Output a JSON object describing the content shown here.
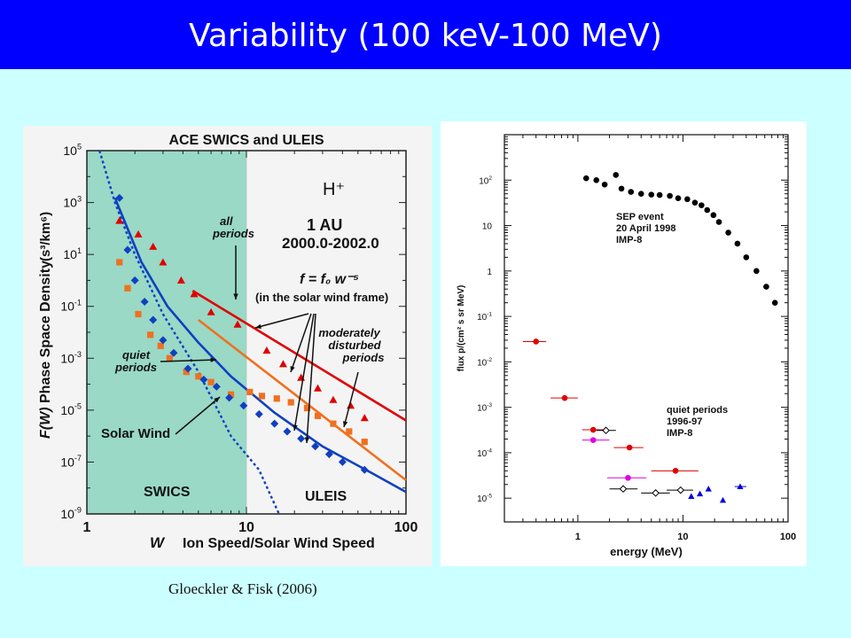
{
  "slide": {
    "title": "Variability (100 keV-100 MeV)",
    "citation": "Gloeckler & Fisk (2006)",
    "colors": {
      "title_bar": "#0000ff",
      "background": "#ccffff"
    }
  },
  "chart_data": [
    {
      "type": "scatter",
      "title": "ACE SWICS and ULEIS",
      "xlabel_symbol": "W",
      "xlabel": "Ion Speed/Solar Wind Speed",
      "ylabel_symbol": "F(W)",
      "ylabel": "Phase Space Density",
      "ylabel_units": "(s³/km⁶)",
      "xscale": "log",
      "yscale": "log",
      "xlim": [
        1,
        100
      ],
      "ylim": [
        1e-09,
        100000.0
      ],
      "x_ticks": [
        {
          "v": 1,
          "label": "1"
        },
        {
          "v": 10,
          "label": "10"
        },
        {
          "v": 100,
          "label": "100"
        }
      ],
      "y_ticks": [
        {
          "v": 100000.0,
          "b": "10",
          "e": "5"
        },
        {
          "v": 1000.0,
          "b": "10",
          "e": "3"
        },
        {
          "v": 10.0,
          "b": "10",
          "e": "1"
        },
        {
          "v": 0.1,
          "b": "10",
          "e": "-1"
        },
        {
          "v": 0.001,
          "b": "10",
          "e": "-3"
        },
        {
          "v": 1e-05,
          "b": "10",
          "e": "-5"
        },
        {
          "v": 1e-07,
          "b": "10",
          "e": "-7"
        },
        {
          "v": 1e-09,
          "b": "10",
          "e": "-9"
        }
      ],
      "swics_region": {
        "x_range": [
          1,
          10
        ],
        "label": "SWICS",
        "color": "#99d9c6"
      },
      "region_labels": {
        "swics": "SWICS",
        "uleis": "ULEIS"
      },
      "species": "H⁺",
      "location": "1 AU",
      "period": "2000.0-2002.0",
      "formula": {
        "text": "f = f₀ w⁻⁵",
        "note": "(in the solar wind frame)"
      },
      "annotations": {
        "all_periods": [
          "all",
          "periods"
        ],
        "moderately_disturbed": [
          "moderately",
          "disturbed",
          "periods"
        ],
        "quiet_periods": [
          "quiet",
          "periods"
        ],
        "solar_wind": "Solar Wind"
      },
      "series": [
        {
          "name": "all periods",
          "color": "#e00000",
          "marker": "triangle",
          "x": [
            1.6,
            2.1,
            2.6,
            3.0,
            3.9,
            4.7,
            6.0,
            8.8,
            13.4,
            17,
            22,
            28,
            35,
            45,
            55
          ],
          "y": [
            200,
            60,
            20,
            5,
            1,
            0.3,
            0.06,
            0.02,
            0.002,
            0.0006,
            0.00018,
            7e-05,
            2.5e-05,
            1.5e-05,
            5e-06
          ],
          "fit_line": {
            "x": [
              4.6,
              100
            ],
            "y": [
              0.4,
              4e-06
            ]
          }
        },
        {
          "name": "moderately disturbed periods",
          "color": "#f07020",
          "marker": "square",
          "x": [
            1.6,
            1.8,
            2.1,
            2.5,
            2.9,
            3.3,
            4.2,
            5.0,
            6.0,
            8.0,
            10.5,
            12.5,
            15.5,
            19,
            24,
            28,
            35,
            44,
            55
          ],
          "y": [
            5,
            0.5,
            0.05,
            0.008,
            0.003,
            0.001,
            0.0003,
            0.0002,
            0.00012,
            4e-05,
            5e-05,
            3.5e-05,
            2.8e-05,
            2e-05,
            1.2e-05,
            6e-06,
            3e-06,
            1.5e-06,
            6e-07
          ],
          "fit_line": {
            "x": [
              5,
              100
            ],
            "y": [
              0.03,
              2e-08
            ]
          }
        },
        {
          "name": "quiet periods",
          "color": "#1040c0",
          "marker": "diamond",
          "x": [
            1.6,
            1.8,
            2.0,
            2.3,
            2.6,
            3.0,
            3.5,
            4.3,
            5.4,
            6.5,
            7.8,
            9.6,
            12,
            15,
            18,
            22,
            27,
            33,
            40,
            55
          ],
          "y": [
            1500,
            15,
            1,
            0.15,
            0.03,
            0.005,
            0.0016,
            0.0004,
            0.00015,
            8e-05,
            3e-05,
            1.5e-05,
            7e-06,
            3e-06,
            1.5e-06,
            8e-07,
            4e-07,
            2e-07,
            1e-07,
            5e-08
          ],
          "fit_line": {
            "x": [
              1.5,
              2.2,
              3.2,
              5,
              8,
              15,
              30,
              60,
              100
            ],
            "y": [
              1500,
              5,
              0.1,
              0.004,
              0.0002,
              8e-06,
              4e-07,
              4e-08,
              7e-09
            ]
          }
        },
        {
          "name": "Solar Wind",
          "color": "#1040c0",
          "marker": "none",
          "style": "dotted",
          "x": [
            1.2,
            1.5,
            2.0,
            3.0,
            5.0,
            8.0,
            12,
            16
          ],
          "y": [
            100000.0,
            1000,
            10,
            0.05,
            0.0003,
            1e-06,
            5e-08,
            1e-09
          ]
        }
      ]
    },
    {
      "type": "scatter",
      "xlabel": "energy  (MeV)",
      "ylabel": "flux p/(cm² s sr MeV)",
      "xscale": "log",
      "yscale": "log",
      "xlim": [
        0.2,
        100
      ],
      "ylim": [
        3e-06,
        1000
      ],
      "x_ticks": [
        {
          "v": 1,
          "label": "1"
        },
        {
          "v": 10,
          "label": "10"
        },
        {
          "v": 100,
          "label": "100"
        }
      ],
      "y_ticks": [
        {
          "v": 100,
          "b": "10",
          "e": "2"
        },
        {
          "v": 10,
          "b": "10",
          "e": ""
        },
        {
          "v": 1,
          "b": "1",
          "e": ""
        },
        {
          "v": 0.1,
          "b": "10",
          "e": "-1"
        },
        {
          "v": 0.01,
          "b": "10",
          "e": "-2"
        },
        {
          "v": 0.001,
          "b": "10",
          "e": "-3"
        },
        {
          "v": 0.0001,
          "b": "10",
          "e": "-4"
        },
        {
          "v": 1e-05,
          "b": "10",
          "e": "-5"
        }
      ],
      "labels": {
        "sep": [
          "SEP event",
          "20 April 1998",
          "IMP-8"
        ],
        "quiet": [
          "quiet periods",
          "1996-97",
          "IMP-8"
        ]
      },
      "series": [
        {
          "name": "SEP event 20 April 1998",
          "color": "#000000",
          "marker": "circle",
          "x": [
            1.2,
            1.5,
            1.8,
            2.3,
            2.6,
            3.2,
            4.0,
            5.0,
            6.0,
            7.5,
            9.0,
            11,
            13,
            15,
            17,
            19.5,
            22,
            27,
            33,
            40,
            50,
            62,
            75
          ],
          "y": [
            110,
            100,
            80,
            130,
            65,
            55,
            50,
            48,
            47,
            45,
            40,
            38,
            32,
            28,
            22,
            17,
            12,
            7,
            4,
            2,
            1,
            0.45,
            0.2
          ],
          "x_err": []
        },
        {
          "name": "quiet red",
          "color": "#e00000",
          "marker": "circle",
          "x": [
            0.4,
            0.75,
            1.4,
            3.1,
            8.5
          ],
          "y": [
            0.028,
            0.0016,
            0.00032,
            0.00013,
            4e-05
          ],
          "x_err": [
            [
              0.3,
              0.5
            ],
            [
              0.55,
              1.0
            ],
            [
              1.1,
              1.8
            ],
            [
              2.2,
              4.2
            ],
            [
              5.0,
              14
            ]
          ]
        },
        {
          "name": "quiet magenta",
          "color": "#e000e0",
          "marker": "circle",
          "x": [
            1.4,
            3.0
          ],
          "y": [
            0.00019,
            2.8e-05
          ],
          "x_err": [
            [
              1.1,
              2.0
            ],
            [
              1.9,
              4.5
            ]
          ]
        },
        {
          "name": "quiet open",
          "color": "#000000",
          "marker": "open-diamond",
          "x": [
            1.85,
            2.7,
            5.5,
            9.5
          ],
          "y": [
            0.00031,
            1.6e-05,
            1.3e-05,
            1.5e-05
          ],
          "x_err": [
            [
              1.5,
              2.3
            ],
            [
              2.0,
              3.7
            ],
            [
              4.0,
              7.5
            ],
            [
              7.0,
              12.5
            ]
          ]
        },
        {
          "name": "quiet blue",
          "color": "#0000e0",
          "marker": "triangle",
          "x": [
            12,
            14.5,
            17.5,
            24,
            35
          ],
          "y": [
            1.1e-05,
            1.25e-05,
            1.6e-05,
            9e-06,
            1.8e-05
          ],
          "x_err": [
            [],
            [],
            [],
            [],
            [
              31,
              40
            ]
          ]
        }
      ]
    }
  ]
}
